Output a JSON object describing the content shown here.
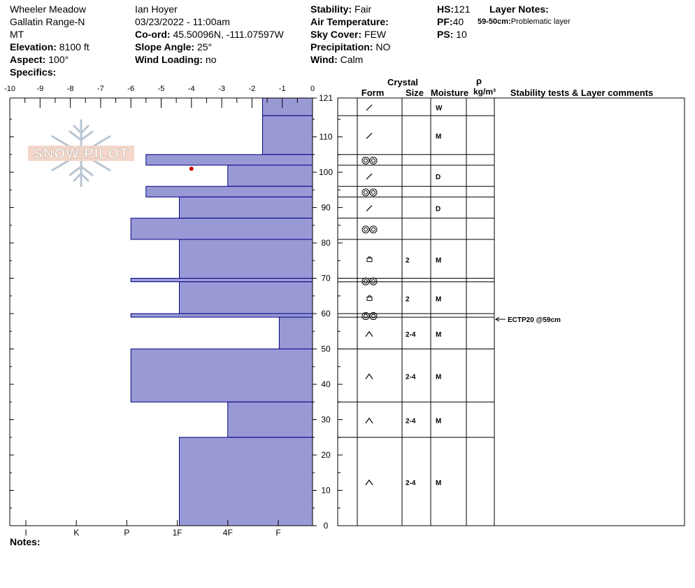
{
  "header": {
    "location": "Wheeler Meadow",
    "range": "Gallatin Range-N",
    "state": "MT",
    "elevation_label": "Elevation:",
    "elevation_value": "8100 ft",
    "aspect_label": "Aspect:",
    "aspect_value": "100°",
    "specifics_label": "Specifics:",
    "observer": "Ian Hoyer",
    "datetime": "03/23/2022 - 11:00am",
    "coord_label": "Co-ord:",
    "coord_value": "45.50096N, -111.07597W",
    "slope_label": "Slope Angle:",
    "slope_value": "25°",
    "wind_loading_label": "Wind Loading:",
    "wind_loading_value": "no",
    "stability_label": "Stability:",
    "stability_value": "Fair",
    "air_temp_label": "Air Temperature:",
    "sky_label": "Sky Cover:",
    "sky_value": "FEW",
    "precip_label": "Precipitation:",
    "precip_value": "NO",
    "wind_label": "Wind:",
    "wind_value": "Calm",
    "hs_label": "HS:",
    "hs_value": "121",
    "pf_label": "PF:",
    "pf_value": "40",
    "ps_label": "PS:",
    "ps_value": "10",
    "layer_notes_label": "Layer Notes:",
    "layer_note_depth": "59-50cm:",
    "layer_note_text": "Problematic layer"
  },
  "notes_label": "Notes:",
  "logo_text": "SNOW PILOT",
  "colors": {
    "hardness_fill": "#9999d6",
    "hardness_stroke": "#000080",
    "temp_point": "#cc0000"
  },
  "chart_data": {
    "type": "bar",
    "orientation": "horizontal",
    "temperature_axis": {
      "ticks": [
        "-10",
        "-9",
        "-8",
        "-7",
        "-6",
        "-5",
        "-4",
        "-3",
        "-2",
        "-1",
        "0"
      ],
      "range": [
        -10,
        0
      ]
    },
    "height_axis": {
      "ticks": [
        "121",
        "110",
        "100",
        "90",
        "80",
        "70",
        "60",
        "50",
        "40",
        "30",
        "20",
        "10",
        "0"
      ],
      "range": [
        0,
        121
      ]
    },
    "hardness_axis": {
      "ticks": [
        "I",
        "K",
        "P",
        "1F",
        "4F",
        "F"
      ]
    },
    "temperature_points": [
      {
        "height": 101,
        "temp": -4.0
      }
    ],
    "layers": [
      {
        "top": 121,
        "bottom": 116,
        "hardness": 1.65,
        "form": "decomp",
        "size": "",
        "moisture": "W"
      },
      {
        "top": 116,
        "bottom": 105,
        "hardness": 1.65,
        "form": "decomp",
        "size": "",
        "moisture": "M"
      },
      {
        "top": 105,
        "bottom": 102,
        "hardness": 5.5,
        "form": "melt",
        "size": "",
        "moisture": ""
      },
      {
        "top": 102,
        "bottom": 96,
        "hardness": 2.8,
        "form": "decomp",
        "size": "",
        "moisture": "D"
      },
      {
        "top": 96,
        "bottom": 93,
        "hardness": 5.5,
        "form": "melt",
        "size": "",
        "moisture": ""
      },
      {
        "top": 93,
        "bottom": 87,
        "hardness": 4.4,
        "form": "decomp",
        "size": "",
        "moisture": "D"
      },
      {
        "top": 87,
        "bottom": 81,
        "hardness": 6.0,
        "form": "melt",
        "size": "",
        "moisture": ""
      },
      {
        "top": 81,
        "bottom": 70,
        "hardness": 4.4,
        "form": "faceted",
        "size": "2",
        "moisture": "M"
      },
      {
        "top": 70,
        "bottom": 69,
        "hardness": 6.0,
        "form": "melt",
        "size": "",
        "moisture": ""
      },
      {
        "top": 69,
        "bottom": 60,
        "hardness": 4.4,
        "form": "faceted",
        "size": "2",
        "moisture": "M"
      },
      {
        "top": 60,
        "bottom": 59,
        "hardness": 6.0,
        "form": "melt",
        "size": "",
        "moisture": ""
      },
      {
        "top": 59,
        "bottom": 50,
        "hardness": 1.1,
        "form": "depth-hoar",
        "size": "2-4",
        "moisture": "M"
      },
      {
        "top": 50,
        "bottom": 35,
        "hardness": 6.0,
        "form": "depth-hoar",
        "size": "2-4",
        "moisture": "M"
      },
      {
        "top": 35,
        "bottom": 25,
        "hardness": 2.8,
        "form": "depth-hoar",
        "size": "2-4",
        "moisture": "M"
      },
      {
        "top": 25,
        "bottom": 0,
        "hardness": 4.4,
        "form": "depth-hoar",
        "size": "2-4",
        "moisture": "M"
      }
    ],
    "stability_tests": [
      {
        "depth": 59,
        "label": "ECTP20 @59cm"
      }
    ],
    "column_headers": {
      "crystal": "Crystal",
      "form": "Form",
      "size": "Size",
      "moisture": "Moisture",
      "rho": "ρ",
      "density_unit": "kg/m³",
      "stability": "Stability tests & Layer comments"
    }
  }
}
